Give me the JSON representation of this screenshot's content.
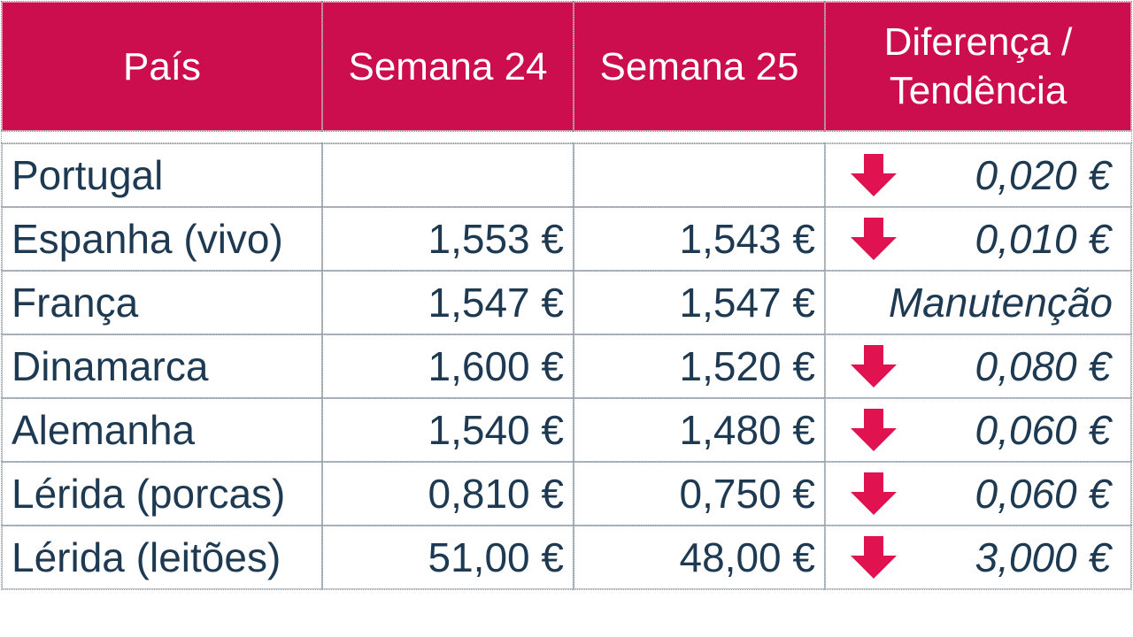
{
  "colors": {
    "header_bg": "#cc0e4e",
    "header_text": "#ffffff",
    "body_text": "#1d3a52",
    "arrow": "#e0124f"
  },
  "table": {
    "headers": {
      "country": "País",
      "week24": "Semana 24",
      "week25": "Semana 25",
      "diff_line1": "Diferença /",
      "diff_line2": "Tendência"
    },
    "rows": [
      {
        "country": "Portugal",
        "week24": "",
        "week25": "",
        "trend": "down",
        "diff": "0,020 €"
      },
      {
        "country": "Espanha (vivo)",
        "week24": "1,553 €",
        "week25": "1,543 €",
        "trend": "down",
        "diff": "0,010 €"
      },
      {
        "country": "França",
        "week24": "1,547 €",
        "week25": "1,547 €",
        "trend": "none",
        "diff": "Manutenção"
      },
      {
        "country": "Dinamarca",
        "week24": "1,600 €",
        "week25": "1,520 €",
        "trend": "down",
        "diff": "0,080 €"
      },
      {
        "country": "Alemanha",
        "week24": "1,540 €",
        "week25": "1,480 €",
        "trend": "down",
        "diff": "0,060 €"
      },
      {
        "country": "Lérida (porcas)",
        "week24": "0,810 €",
        "week25": "0,750 €",
        "trend": "down",
        "diff": "0,060 €"
      },
      {
        "country": "Lérida (leitões)",
        "week24": "51,00 €",
        "week25": "48,00 €",
        "trend": "down",
        "diff": "3,000 €"
      }
    ],
    "trend_icon": "down-arrow-icon"
  }
}
